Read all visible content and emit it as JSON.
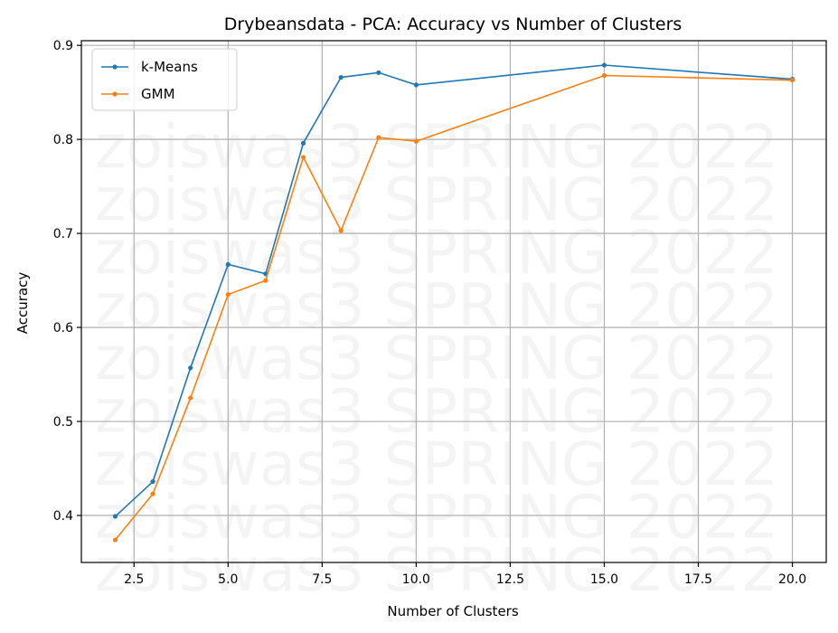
{
  "chart_data": {
    "type": "line",
    "title": "Drybeansdata - PCA: Accuracy vs Number of Clusters",
    "xlabel": "Number of Clusters",
    "ylabel": "Accuracy",
    "xlim": [
      1.1,
      20.9
    ],
    "ylim": [
      0.35,
      0.905
    ],
    "xticks": [
      2.5,
      5.0,
      7.5,
      10.0,
      12.5,
      15.0,
      17.5,
      20.0
    ],
    "xtick_labels": [
      "2.5",
      "5.0",
      "7.5",
      "10.0",
      "12.5",
      "15.0",
      "17.5",
      "20.0"
    ],
    "yticks": [
      0.4,
      0.5,
      0.6,
      0.7,
      0.8,
      0.9
    ],
    "ytick_labels": [
      "0.4",
      "0.5",
      "0.6",
      "0.7",
      "0.8",
      "0.9"
    ],
    "grid": true,
    "legend": "top-left",
    "x": [
      2,
      3,
      4,
      5,
      6,
      7,
      8,
      9,
      10,
      15,
      20
    ],
    "series": [
      {
        "name": "k-Means",
        "color": "#1f77b4",
        "values": [
          0.399,
          0.436,
          0.557,
          0.667,
          0.657,
          0.796,
          0.866,
          0.871,
          0.858,
          0.879,
          0.864
        ]
      },
      {
        "name": "GMM",
        "color": "#ff7f0e",
        "values": [
          0.374,
          0.423,
          0.525,
          0.635,
          0.65,
          0.781,
          0.703,
          0.802,
          0.798,
          0.868,
          0.863
        ]
      }
    ],
    "watermark": "zoiswas3 SPRING 2022"
  }
}
